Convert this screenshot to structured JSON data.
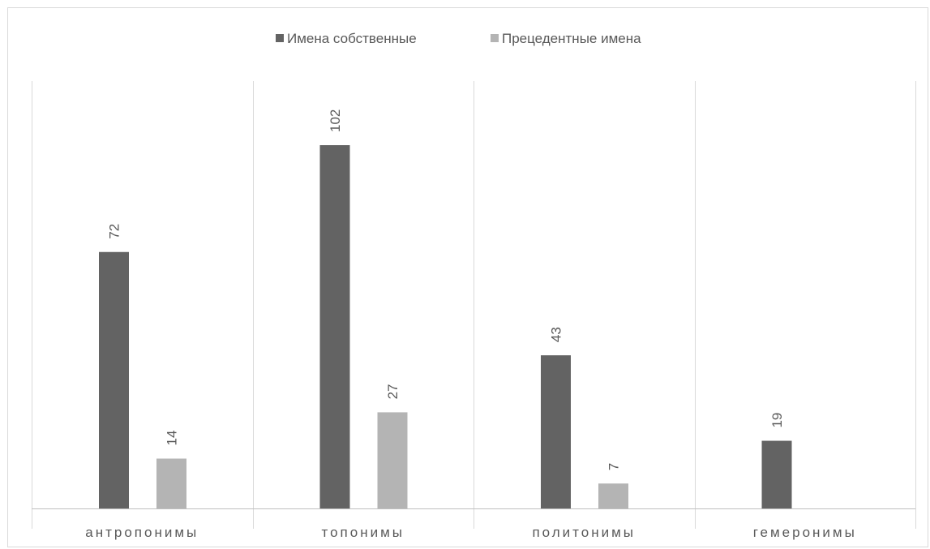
{
  "chart_data": {
    "type": "bar",
    "categories": [
      "антропонимы",
      "топонимы",
      "политонимы",
      "гемеронимы"
    ],
    "series": [
      {
        "name": "Имена собственные",
        "values": [
          72,
          102,
          43,
          19
        ],
        "color": "#636363"
      },
      {
        "name": "Прецедентные имена",
        "values": [
          14,
          27,
          7,
          null
        ],
        "color": "#b4b4b4"
      }
    ],
    "ylim": [
      0,
      120
    ],
    "grid": "vertical category separators",
    "legend_position": "top",
    "data_labels": "rotated above bars",
    "title": "",
    "xlabel": "",
    "ylabel": ""
  }
}
